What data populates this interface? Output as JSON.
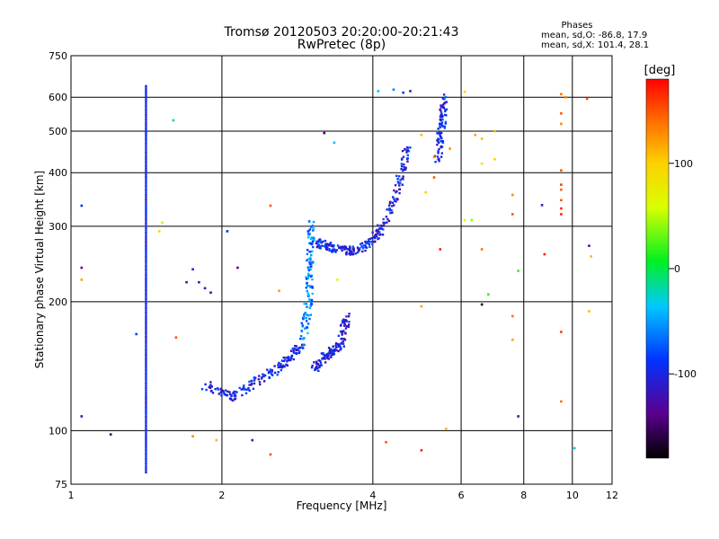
{
  "chart_data": {
    "type": "scatter",
    "title": "Tromsø 20120503 20:20:00-20:21:43",
    "subtitle": "RwPretec (8p)",
    "xlabel": "Frequency [MHz]",
    "ylabel": "Stationary phase Virtual Height [km]",
    "x_scale": "log",
    "y_scale": "log",
    "xlim": [
      1,
      12
    ],
    "ylim": [
      75,
      750
    ],
    "grid": true,
    "x_ticks": [
      "1",
      "2",
      "4",
      "6",
      "8",
      "10",
      "12"
    ],
    "y_ticks": [
      "75",
      "100",
      "200",
      "300",
      "400",
      "500",
      "600",
      "750"
    ],
    "stats": {
      "heading": "Phases",
      "line1": "mean, sd,O: -86.8, 17.9",
      "line2": "mean, sd,X: 101.4, 28.1"
    },
    "colorbar": {
      "label": "[deg]",
      "ticks": [
        "100",
        "0",
        "-100"
      ],
      "range": [
        -180,
        180
      ]
    },
    "traces": [
      {
        "desc": "vertical interference line",
        "f": [
          1.41,
          1.41
        ],
        "h": [
          80,
          640
        ],
        "phase": -95
      },
      {
        "desc": "lower E-region cluster",
        "f": [
          1.85,
          2.1,
          2.4,
          2.7,
          2.9
        ],
        "h": [
          128,
          120,
          132,
          145,
          160
        ],
        "phase": -100
      },
      {
        "desc": "F-layer rising branch",
        "f": [
          2.9,
          2.98,
          3.0,
          3.02
        ],
        "h": [
          160,
          200,
          250,
          310
        ],
        "phase": -60
      },
      {
        "desc": "F-layer trace",
        "f": [
          3.05,
          3.3,
          3.6,
          3.9,
          4.2,
          4.5,
          4.7
        ],
        "h": [
          275,
          268,
          262,
          270,
          300,
          370,
          460
        ],
        "phase": -100
      },
      {
        "desc": "X-mode cluster",
        "f": [
          3.05,
          3.25,
          3.45,
          3.55
        ],
        "h": [
          140,
          150,
          160,
          185
        ],
        "phase": -110
      },
      {
        "desc": "high-frequency cusp",
        "f": [
          5.4,
          5.5,
          5.55
        ],
        "h": [
          430,
          520,
          600
        ],
        "phase": -95
      }
    ],
    "points": [
      {
        "f": 1.7,
        "h": 222,
        "phase": -120
      },
      {
        "f": 1.8,
        "h": 222,
        "phase": -115
      },
      {
        "f": 1.85,
        "h": 215,
        "phase": -110
      },
      {
        "f": 1.9,
        "h": 210,
        "phase": -130
      },
      {
        "f": 1.75,
        "h": 238,
        "phase": -100
      },
      {
        "f": 2.05,
        "h": 292,
        "phase": -95
      },
      {
        "f": 2.15,
        "h": 240,
        "phase": -140
      },
      {
        "f": 1.05,
        "h": 335,
        "phase": -90
      },
      {
        "f": 1.05,
        "h": 240,
        "phase": -140
      },
      {
        "f": 1.05,
        "h": 225,
        "phase": 120
      },
      {
        "f": 1.05,
        "h": 108,
        "phase": -120
      },
      {
        "f": 1.2,
        "h": 98,
        "phase": -150
      },
      {
        "f": 1.35,
        "h": 168,
        "phase": -80
      },
      {
        "f": 1.5,
        "h": 292,
        "phase": 100
      },
      {
        "f": 1.52,
        "h": 306,
        "phase": 80
      },
      {
        "f": 1.62,
        "h": 165,
        "phase": 150
      },
      {
        "f": 1.6,
        "h": 530,
        "phase": -20
      },
      {
        "f": 1.75,
        "h": 97,
        "phase": 130
      },
      {
        "f": 1.95,
        "h": 95,
        "phase": 110
      },
      {
        "f": 2.3,
        "h": 95,
        "phase": -130
      },
      {
        "f": 2.5,
        "h": 88,
        "phase": 150
      },
      {
        "f": 2.5,
        "h": 335,
        "phase": 150
      },
      {
        "f": 2.6,
        "h": 212,
        "phase": 120
      },
      {
        "f": 3.2,
        "h": 495,
        "phase": -150
      },
      {
        "f": 3.35,
        "h": 470,
        "phase": -40
      },
      {
        "f": 3.4,
        "h": 225,
        "phase": 60
      },
      {
        "f": 4.1,
        "h": 620,
        "phase": -40
      },
      {
        "f": 4.25,
        "h": 94,
        "phase": 150
      },
      {
        "f": 4.4,
        "h": 625,
        "phase": -60
      },
      {
        "f": 4.6,
        "h": 615,
        "phase": -90
      },
      {
        "f": 4.75,
        "h": 620,
        "phase": -110
      },
      {
        "f": 5.0,
        "h": 90,
        "phase": 170
      },
      {
        "f": 5.0,
        "h": 195,
        "phase": 120
      },
      {
        "f": 5.0,
        "h": 490,
        "phase": 110
      },
      {
        "f": 5.1,
        "h": 360,
        "phase": 100
      },
      {
        "f": 5.3,
        "h": 435,
        "phase": 130
      },
      {
        "f": 5.3,
        "h": 390,
        "phase": 150
      },
      {
        "f": 5.45,
        "h": 265,
        "phase": 170
      },
      {
        "f": 5.6,
        "h": 101,
        "phase": 110
      },
      {
        "f": 5.7,
        "h": 455,
        "phase": 130
      },
      {
        "f": 6.1,
        "h": 618,
        "phase": 100
      },
      {
        "f": 6.1,
        "h": 310,
        "phase": 60
      },
      {
        "f": 6.3,
        "h": 310,
        "phase": 40
      },
      {
        "f": 6.4,
        "h": 490,
        "phase": 120
      },
      {
        "f": 6.6,
        "h": 480,
        "phase": 110
      },
      {
        "f": 6.6,
        "h": 420,
        "phase": 90
      },
      {
        "f": 6.6,
        "h": 265,
        "phase": 140
      },
      {
        "f": 6.6,
        "h": 197,
        "phase": -170
      },
      {
        "f": 6.8,
        "h": 208,
        "phase": 20
      },
      {
        "f": 7.0,
        "h": 430,
        "phase": 100
      },
      {
        "f": 7.0,
        "h": 500,
        "phase": 110
      },
      {
        "f": 7.6,
        "h": 355,
        "phase": 130
      },
      {
        "f": 7.6,
        "h": 320,
        "phase": 150
      },
      {
        "f": 7.6,
        "h": 185,
        "phase": 140
      },
      {
        "f": 7.6,
        "h": 163,
        "phase": 120
      },
      {
        "f": 7.8,
        "h": 236,
        "phase": 20
      },
      {
        "f": 7.8,
        "h": 108,
        "phase": -120
      },
      {
        "f": 8.7,
        "h": 336,
        "phase": -110
      },
      {
        "f": 8.8,
        "h": 258,
        "phase": 170
      },
      {
        "f": 9.5,
        "h": 610,
        "phase": 140
      },
      {
        "f": 9.5,
        "h": 550,
        "phase": 150
      },
      {
        "f": 9.5,
        "h": 520,
        "phase": 130
      },
      {
        "f": 9.5,
        "h": 405,
        "phase": 150
      },
      {
        "f": 9.5,
        "h": 375,
        "phase": 160
      },
      {
        "f": 9.5,
        "h": 365,
        "phase": 145
      },
      {
        "f": 9.5,
        "h": 345,
        "phase": 150
      },
      {
        "f": 9.5,
        "h": 330,
        "phase": 165
      },
      {
        "f": 9.5,
        "h": 320,
        "phase": 170
      },
      {
        "f": 9.5,
        "h": 170,
        "phase": 160
      },
      {
        "f": 9.5,
        "h": 117,
        "phase": 140
      },
      {
        "f": 9.7,
        "h": 600,
        "phase": 130
      },
      {
        "f": 10.1,
        "h": 91,
        "phase": -30
      },
      {
        "f": 10.7,
        "h": 595,
        "phase": 150
      },
      {
        "f": 10.8,
        "h": 270,
        "phase": -130
      },
      {
        "f": 10.9,
        "h": 255,
        "phase": 110
      },
      {
        "f": 10.8,
        "h": 190,
        "phase": 110
      }
    ]
  }
}
